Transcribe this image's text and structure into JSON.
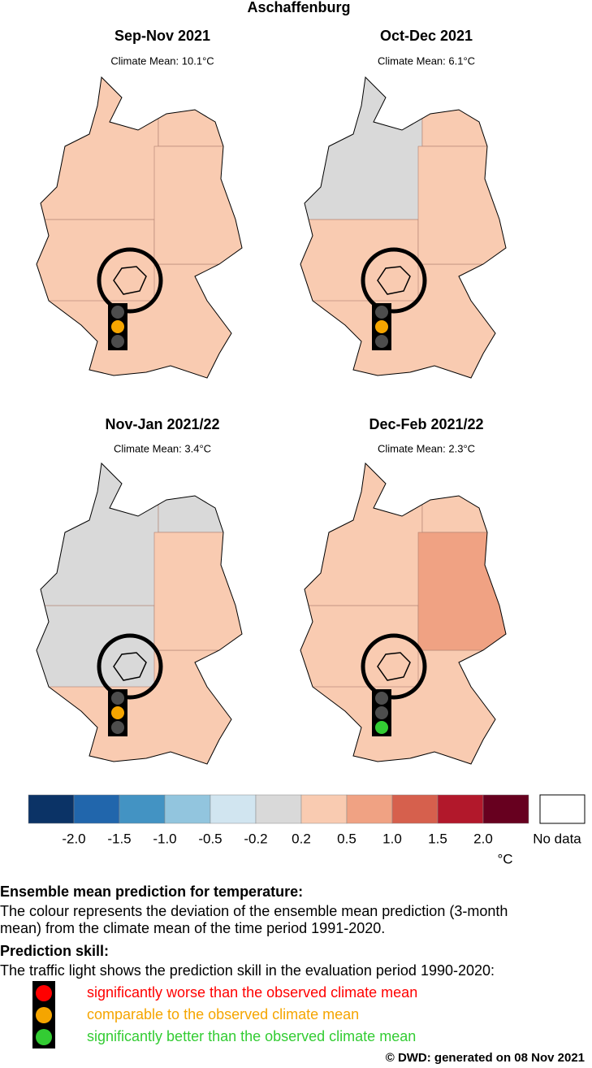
{
  "title": "Aschaffenburg",
  "panels": [
    {
      "title": "Sep-Nov 2021",
      "climate_mean": "Climate Mean: 10.1°C",
      "map_colors": [
        "#f9cbb1",
        "#f9cbb1",
        "#f9cbb1",
        "#f9cbb1",
        "#f9cbb1"
      ],
      "lights": [
        "#4d4d4d",
        "#f5a500",
        "#4d4d4d"
      ]
    },
    {
      "title": "Oct-Dec 2021",
      "climate_mean": "Climate Mean: 6.1°C",
      "map_colors": [
        "#d9d9d9",
        "#f9cbb1",
        "#f9cbb1",
        "#f9cbb1",
        "#f9cbb1"
      ],
      "lights": [
        "#4d4d4d",
        "#f5a500",
        "#4d4d4d"
      ]
    },
    {
      "title": "Nov-Jan 2021/22",
      "climate_mean": "Climate Mean: 3.4°C",
      "map_colors": [
        "#d9d9d9",
        "#d9d9d9",
        "#f9cbb1",
        "#d9d9d9",
        "#f9cbb1"
      ],
      "lights": [
        "#4d4d4d",
        "#f5a500",
        "#4d4d4d"
      ]
    },
    {
      "title": "Dec-Feb 2021/22",
      "climate_mean": "Climate Mean: 2.3°C",
      "map_colors": [
        "#f9cbb1",
        "#f9cbb1",
        "#f0a283",
        "#f9cbb1",
        "#f9cbb1"
      ],
      "lights": [
        "#4d4d4d",
        "#4d4d4d",
        "#33cc33"
      ]
    }
  ],
  "colorbar": {
    "colors": [
      "#0b3366",
      "#2166ac",
      "#4393c3",
      "#92c5de",
      "#d1e5f0",
      "#d9d9d9",
      "#f9cbb1",
      "#f0a283",
      "#d6604d",
      "#b2182b",
      "#67001f"
    ],
    "labels": [
      "-2.0",
      "-1.5",
      "-1.0",
      "-0.5",
      "-0.2",
      "0.2",
      "0.5",
      "1.0",
      "1.5",
      "2.0"
    ],
    "unit": "°C",
    "no_data": "No data"
  },
  "legend": {
    "heading1": "Ensemble mean prediction for temperature:",
    "text1": [
      "The colour represents the deviation of the ensemble mean prediction (3-month",
      "mean) from the climate mean of the time period 1991-2020."
    ],
    "heading2": "Prediction skill:",
    "text2": "The traffic light shows the prediction skill in the evaluation period 1990-2020:",
    "items": [
      {
        "color": "#ff0000",
        "text": "significantly worse than the observed climate mean"
      },
      {
        "color": "#f5a500",
        "text": "comparable to the observed climate mean"
      },
      {
        "color": "#33cc33",
        "text": "significantly better than the observed climate mean"
      }
    ]
  },
  "footer": "©  DWD: generated on 08 Nov 2021"
}
